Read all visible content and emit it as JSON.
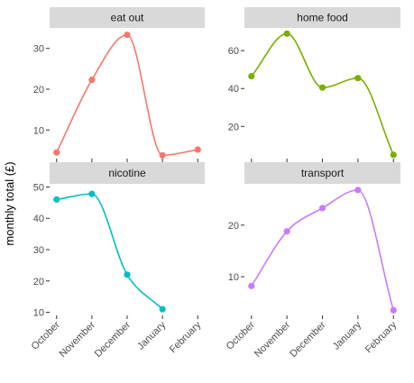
{
  "chart_data": {
    "type": "line",
    "ylabel": "monthly total (£)",
    "xlabel": "",
    "x": [
      "October",
      "November",
      "December",
      "January",
      "February"
    ],
    "grid": false,
    "facets": [
      {
        "name": "eat out",
        "color": "#F8766D",
        "points": [
          {
            "x": "October",
            "y": 4.5
          },
          {
            "x": "November",
            "y": 22.3
          },
          {
            "x": "December",
            "y": 33.3
          },
          {
            "x": "January",
            "y": 3.8
          },
          {
            "x": "February",
            "y": 5.2
          }
        ],
        "ylim": [
          3,
          35
        ],
        "yticks": [
          10,
          20,
          30
        ],
        "show_x_labels": false
      },
      {
        "name": "home food",
        "color": "#7CAE00",
        "points": [
          {
            "x": "October",
            "y": 46.5
          },
          {
            "x": "November",
            "y": 69.0
          },
          {
            "x": "December",
            "y": 40.5
          },
          {
            "x": "January",
            "y": 45.5
          },
          {
            "x": "February",
            "y": 5.0
          }
        ],
        "ylim": [
          3,
          72
        ],
        "yticks": [
          20,
          40,
          60
        ],
        "show_x_labels": false
      },
      {
        "name": "nicotine",
        "color": "#00BFC4",
        "points": [
          {
            "x": "October",
            "y": 46.0
          },
          {
            "x": "November",
            "y": 47.8
          },
          {
            "x": "December",
            "y": 22.0
          },
          {
            "x": "January",
            "y": 11.0
          }
        ],
        "ylim": [
          9,
          51
        ],
        "yticks": [
          10,
          20,
          30,
          40,
          50
        ],
        "show_x_labels": true
      },
      {
        "name": "transport",
        "color": "#C77CFF",
        "points": [
          {
            "x": "October",
            "y": 8.2
          },
          {
            "x": "November",
            "y": 18.8
          },
          {
            "x": "December",
            "y": 23.3
          },
          {
            "x": "January",
            "y": 26.8
          },
          {
            "x": "February",
            "y": 3.5
          }
        ],
        "ylim": [
          2.5,
          28
        ],
        "yticks": [
          10,
          20
        ],
        "show_x_labels": true
      }
    ]
  }
}
